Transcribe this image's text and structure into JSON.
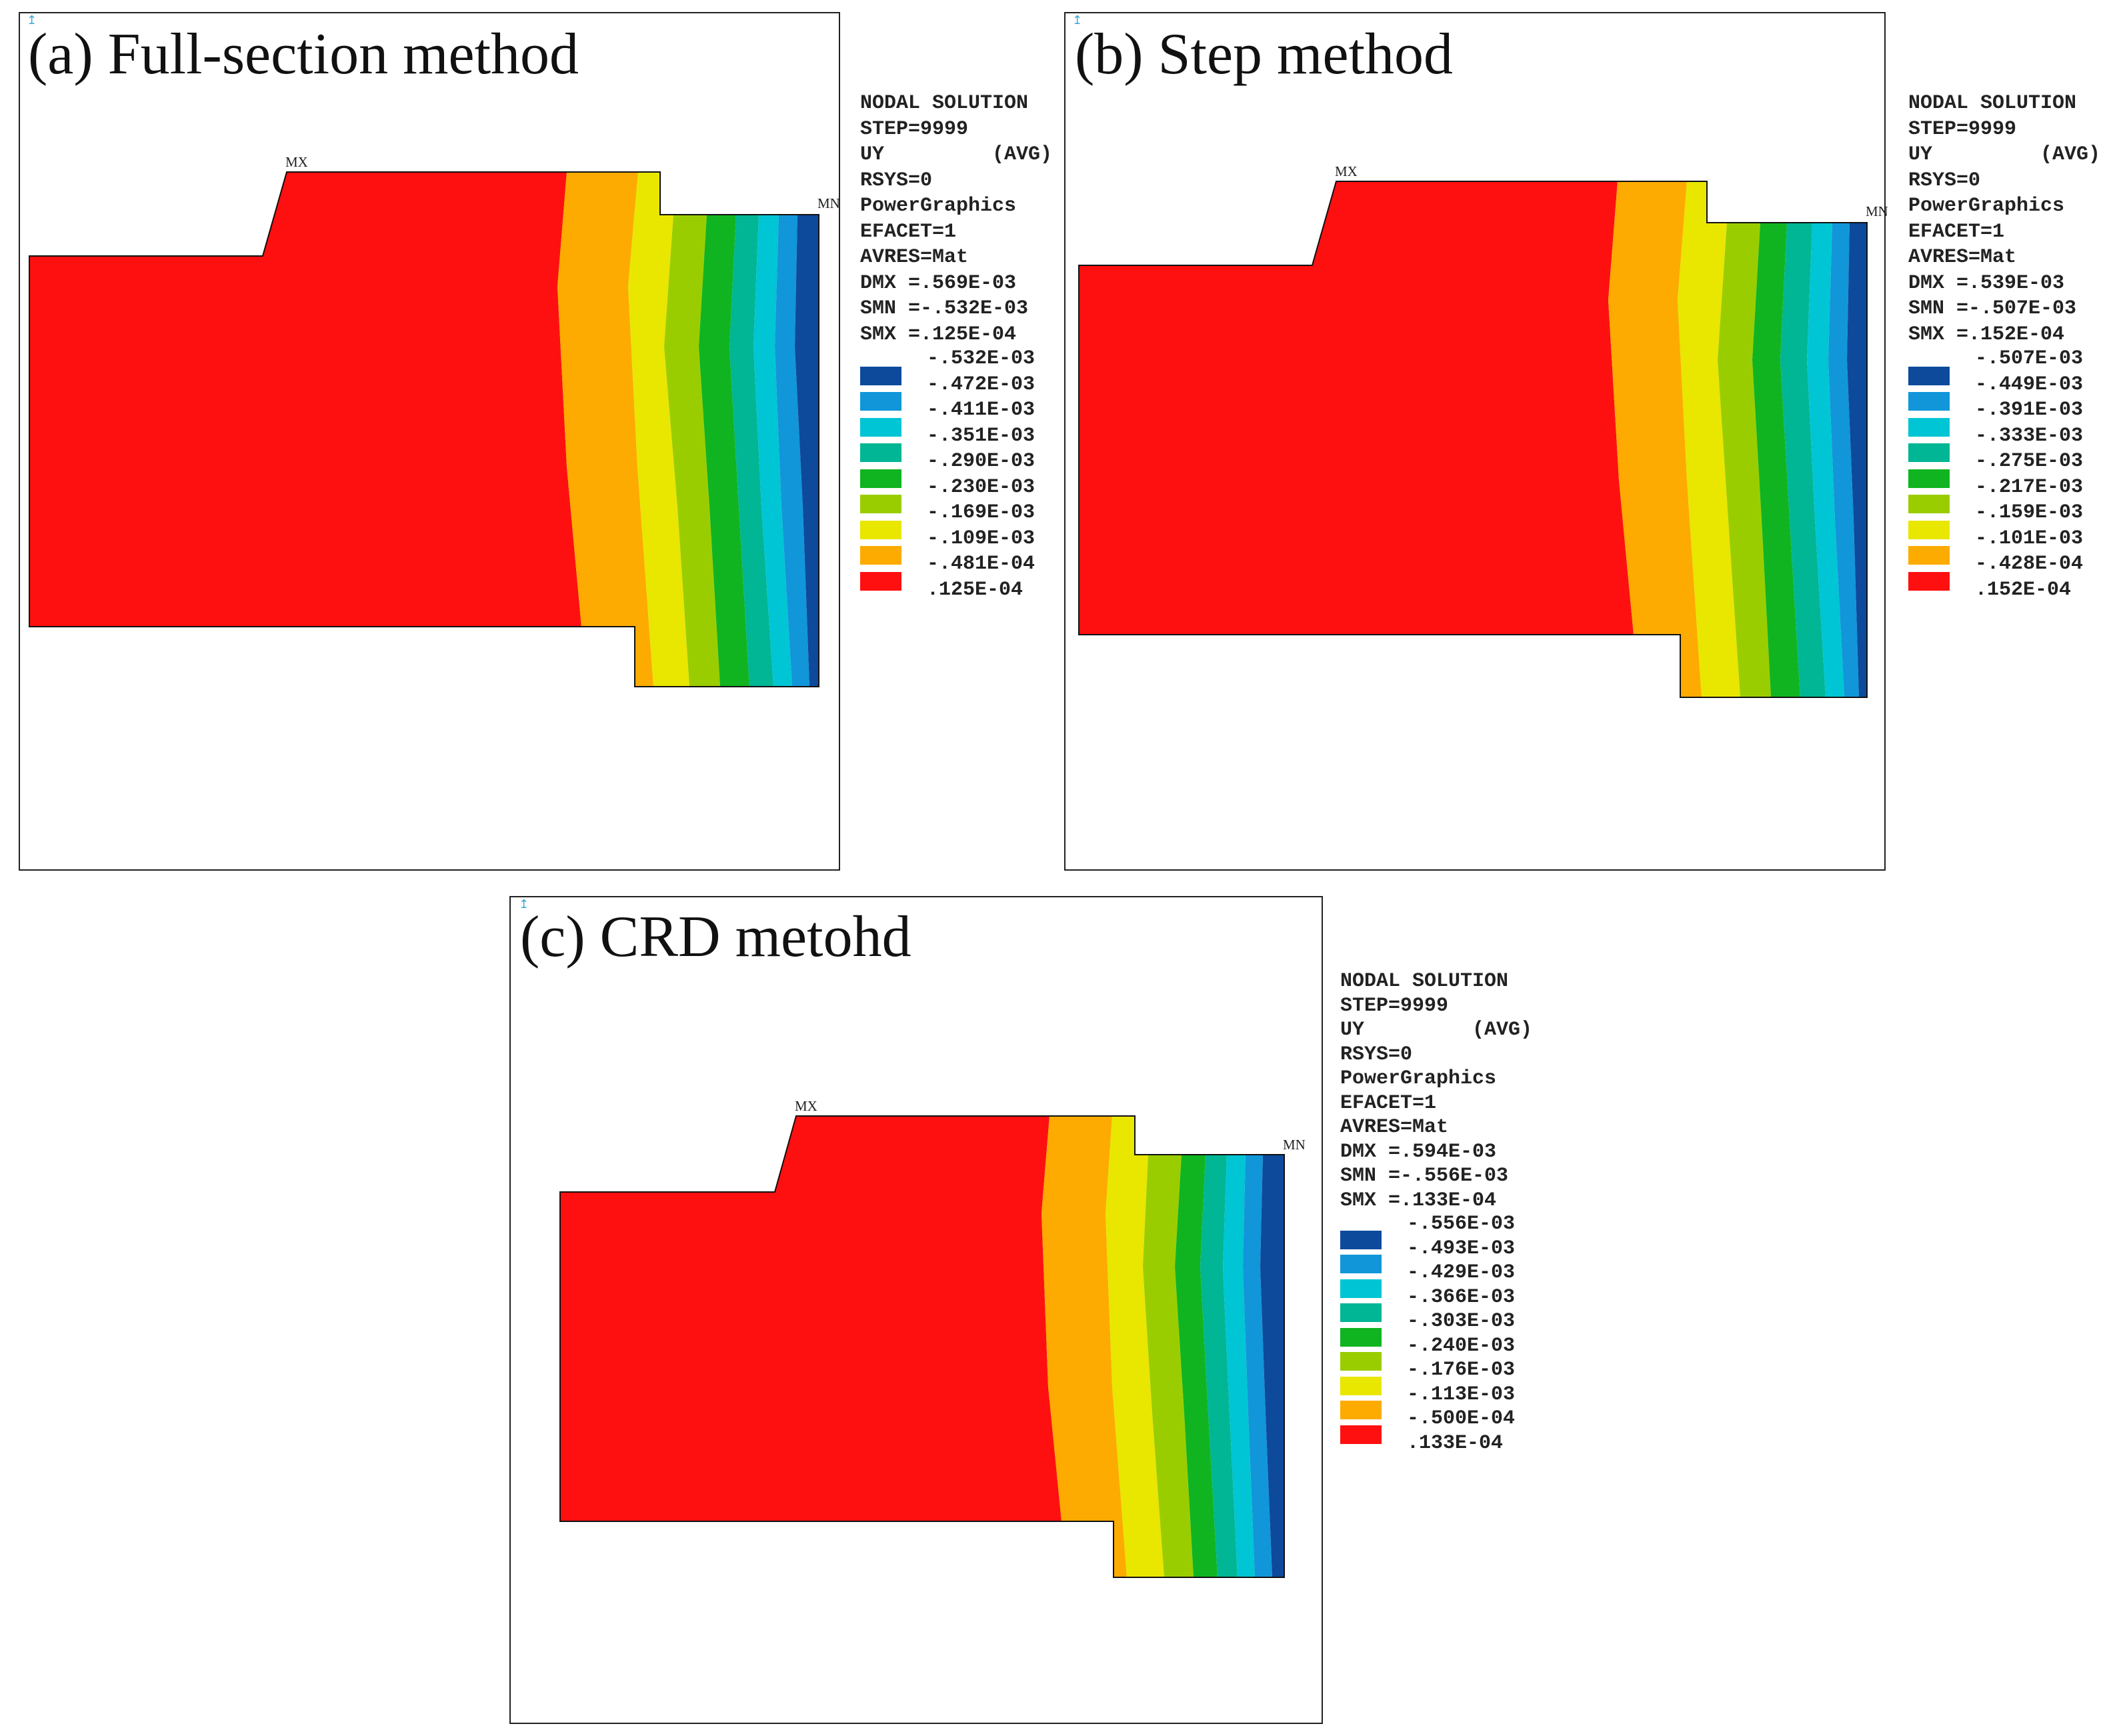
{
  "colors": {
    "band1": "#0d4a9c",
    "band2": "#1196d9",
    "band3": "#00c5d4",
    "band4": "#00b694",
    "band5": "#10b420",
    "band6": "#9acd00",
    "band7": "#e9e600",
    "band8": "#fdab00",
    "band9": "#ff1010"
  },
  "panels": [
    {
      "title": "(a) Full-section method",
      "axis_symbol": "↥",
      "max_tag": "MX",
      "min_tag": "MN",
      "legend": {
        "header": [
          "NODAL SOLUTION",
          "STEP=9999",
          "UY         (AVG)",
          "RSYS=0",
          "PowerGraphics",
          "EFACET=1",
          "AVRES=Mat",
          "DMX =.569E-03",
          "SMN =-.532E-03",
          "SMX =.125E-04"
        ],
        "values": [
          "-.532E-03",
          "-.472E-03",
          "-.411E-03",
          "-.351E-03",
          "-.290E-03",
          "-.230E-03",
          "-.169E-03",
          "-.109E-03",
          "-.481E-04",
          ".125E-04"
        ]
      }
    },
    {
      "title": "(b) Step method",
      "axis_symbol": "↥",
      "max_tag": "MX",
      "min_tag": "MN",
      "legend": {
        "header": [
          "NODAL SOLUTION",
          "STEP=9999",
          "UY         (AVG)",
          "RSYS=0",
          "PowerGraphics",
          "EFACET=1",
          "AVRES=Mat",
          "DMX =.539E-03",
          "SMN =-.507E-03",
          "SMX =.152E-04"
        ],
        "values": [
          "-.507E-03",
          "-.449E-03",
          "-.391E-03",
          "-.333E-03",
          "-.275E-03",
          "-.217E-03",
          "-.159E-03",
          "-.101E-03",
          "-.428E-04",
          ".152E-04"
        ]
      }
    },
    {
      "title": "(c) CRD metohd",
      "axis_symbol": "↥",
      "max_tag": "MX",
      "min_tag": "MN",
      "legend": {
        "header": [
          "NODAL SOLUTION",
          "STEP=9999",
          "UY         (AVG)",
          "RSYS=0",
          "PowerGraphics",
          "EFACET=1",
          "AVRES=Mat",
          "DMX =.594E-03",
          "SMN =-.556E-03",
          "SMX =.133E-04"
        ],
        "values": [
          "-.556E-03",
          "-.493E-03",
          "-.429E-03",
          "-.366E-03",
          "-.303E-03",
          "-.240E-03",
          "-.176E-03",
          "-.113E-03",
          "-.500E-04",
          ".133E-04"
        ]
      }
    }
  ]
}
